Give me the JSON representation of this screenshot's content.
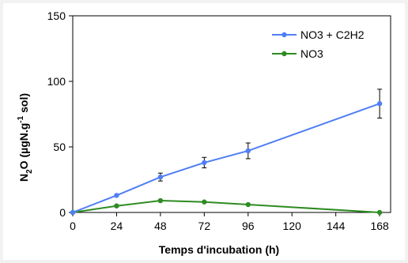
{
  "chart_data": {
    "type": "line",
    "xlabel": "Temps d'incubation (h)",
    "ylabel": {
      "main": "N",
      "sub1": "2",
      "mid": "O (µgN.g",
      "sup": "-1",
      "end": " sol)"
    },
    "x_ticks": [
      0,
      24,
      48,
      72,
      96,
      120,
      144,
      168
    ],
    "y_ticks": [
      0,
      50,
      100,
      150
    ],
    "xlim": [
      0,
      174
    ],
    "ylim": [
      0,
      150
    ],
    "legend_position": "top-right",
    "series": [
      {
        "name": "NO3 + C2H2",
        "color": "#4f7ef5",
        "x": [
          0,
          24,
          48,
          72,
          96,
          168
        ],
        "y": [
          0,
          13,
          27,
          38,
          47,
          83
        ],
        "err": [
          0,
          0,
          3,
          4,
          6,
          11
        ]
      },
      {
        "name": "NO3",
        "color": "#2e8b22",
        "x": [
          0,
          24,
          48,
          72,
          96,
          168
        ],
        "y": [
          0,
          5,
          9,
          8,
          6,
          0
        ],
        "err": [
          0,
          0,
          0,
          0,
          0,
          0
        ]
      }
    ]
  }
}
